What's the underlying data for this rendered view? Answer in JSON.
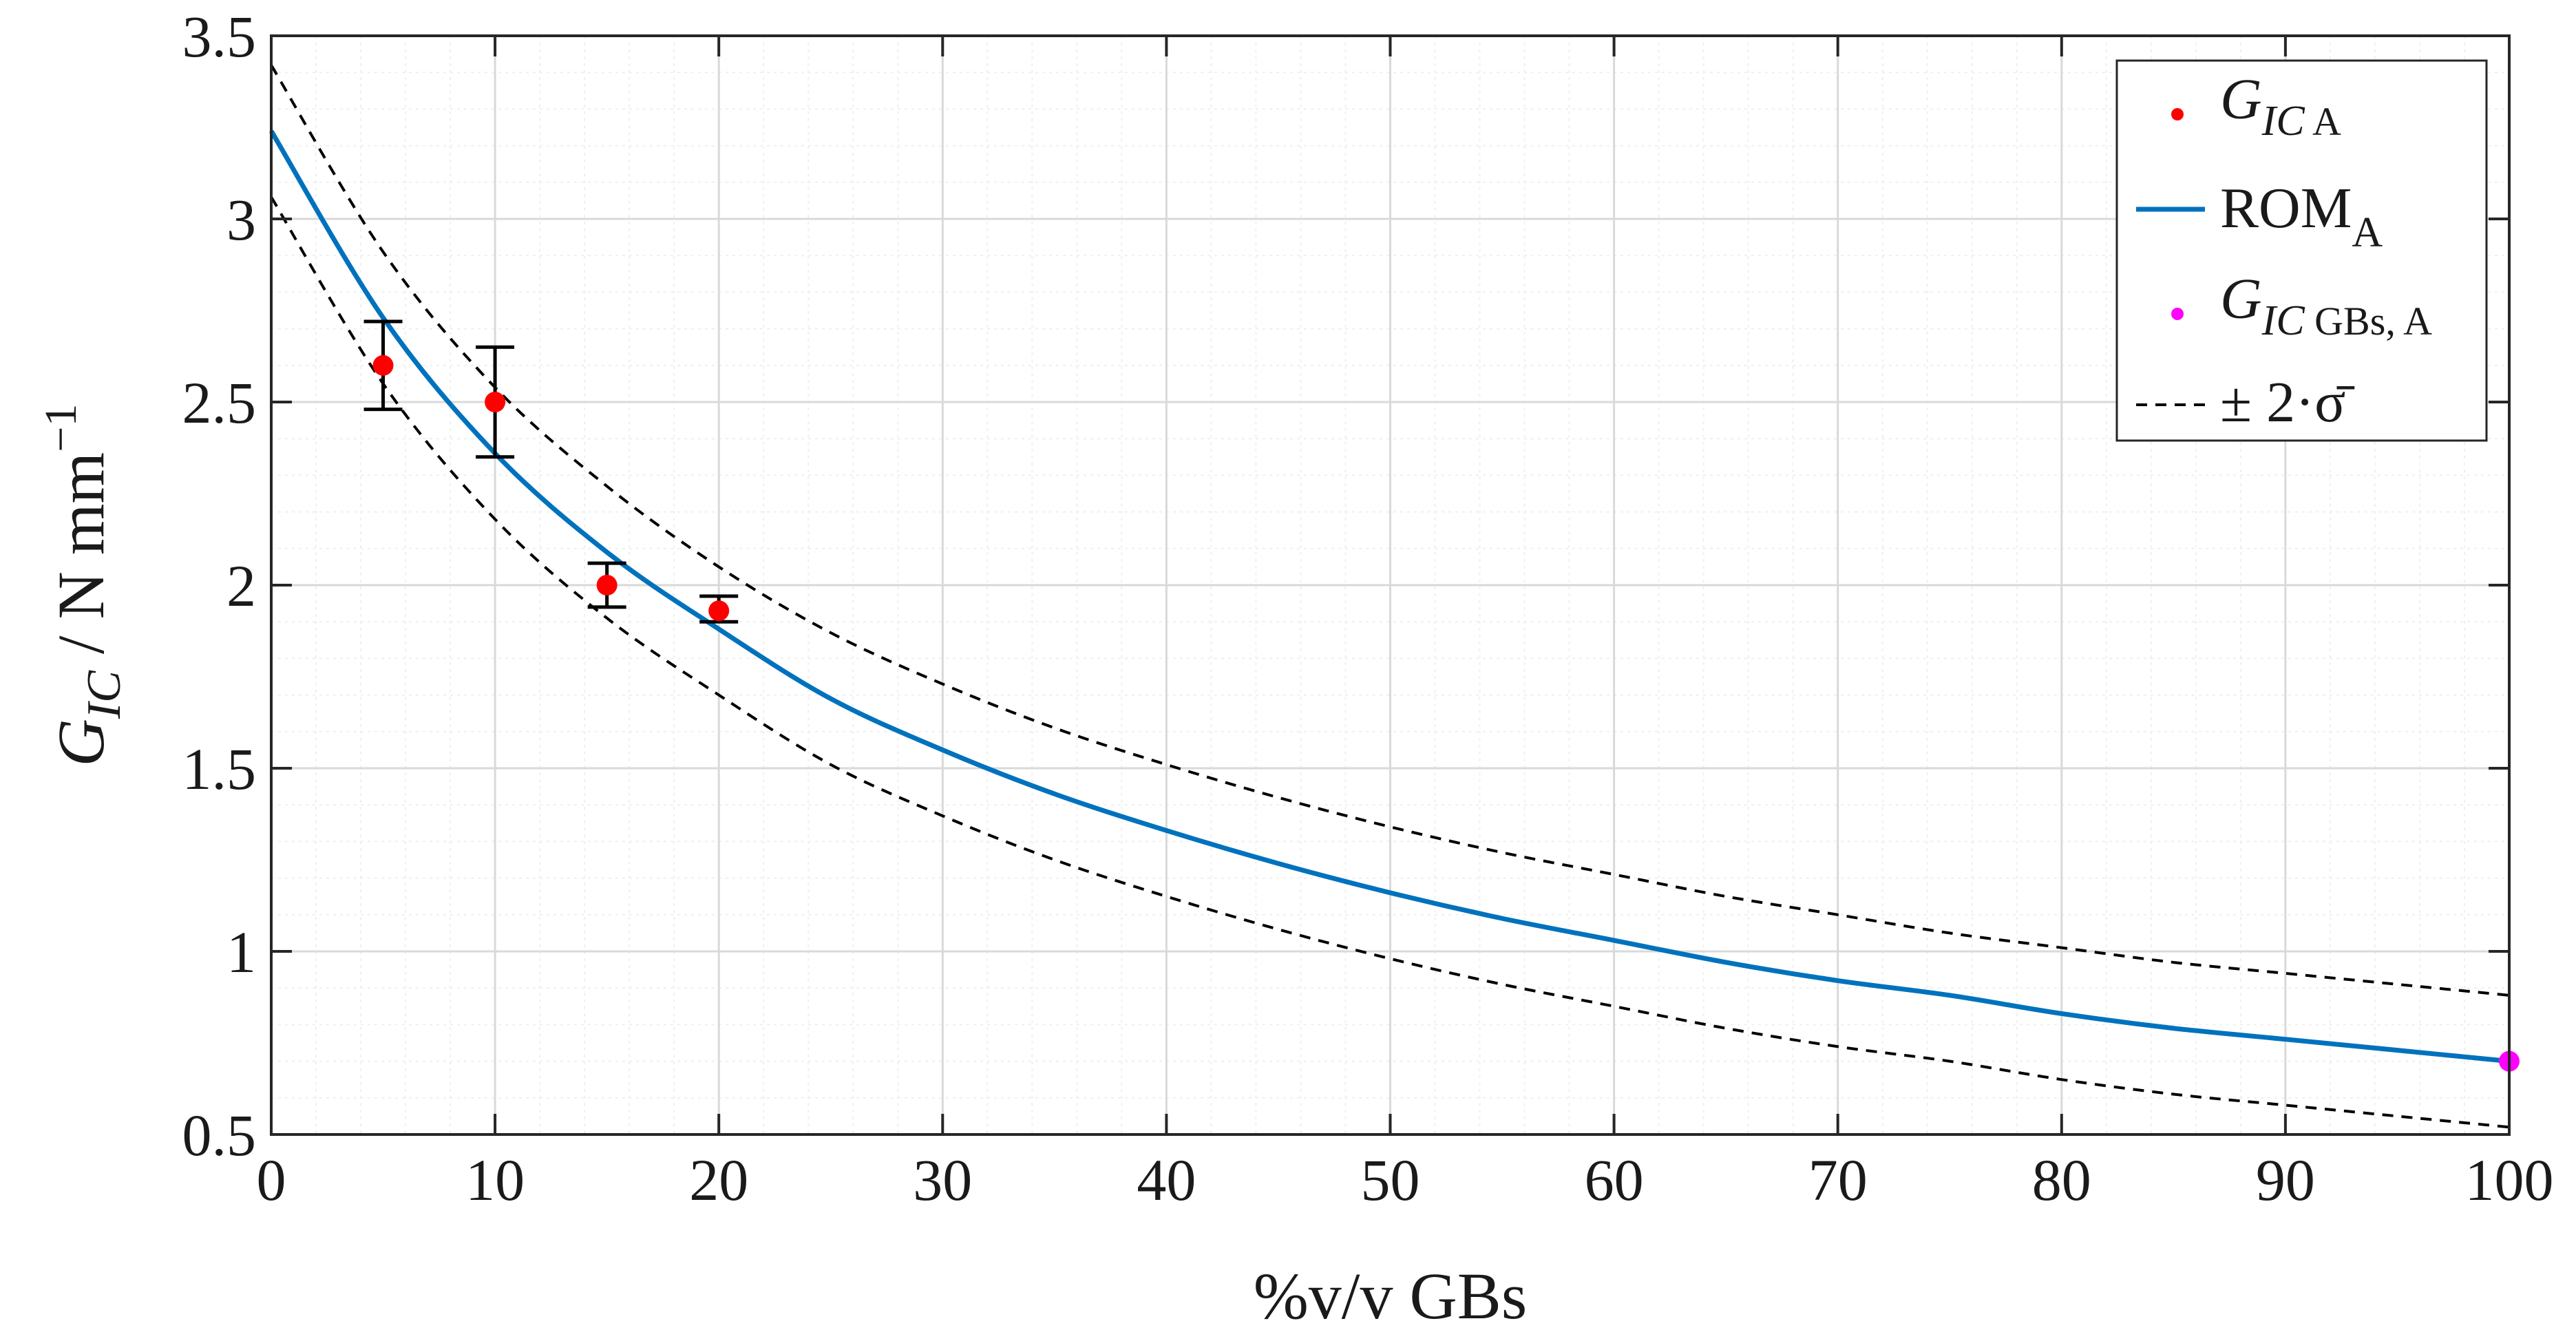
{
  "chart_data": {
    "type": "line",
    "title": "",
    "xlabel": "%v/v GBs",
    "ylabel": {
      "main": "G",
      "sub": "IC",
      "rest": " / N mm",
      "sup": "−1"
    },
    "xlim": [
      0,
      100
    ],
    "ylim": [
      0.5,
      3.5
    ],
    "x_ticks": [
      "0",
      "10",
      "20",
      "30",
      "40",
      "50",
      "60",
      "70",
      "80",
      "90",
      "100"
    ],
    "y_ticks": [
      "0.5",
      "1",
      "1.5",
      "2",
      "2.5",
      "3",
      "3.5"
    ],
    "x_tick_values": [
      0,
      10,
      20,
      30,
      40,
      50,
      60,
      70,
      80,
      90,
      100
    ],
    "y_tick_values": [
      0.5,
      1,
      1.5,
      2,
      2.5,
      3,
      3.5
    ],
    "grid": "major and minor",
    "legend_location": "top-right",
    "colors": {
      "measured": "#ff0000",
      "rom": "#0072bd",
      "gbs": "#ff00ff",
      "band": "#000000",
      "grid_major": "#d9d9d9",
      "grid_minor": "#efefef",
      "axis": "#262626"
    },
    "series": [
      {
        "name": "G_IC A",
        "kind": "scatter-errorbar",
        "x": [
          5,
          10,
          15,
          20
        ],
        "y": [
          2.6,
          2.5,
          2.0,
          1.93
        ],
        "err_low": [
          2.48,
          2.35,
          1.94,
          1.9
        ],
        "err_high": [
          2.72,
          2.65,
          2.06,
          1.97
        ]
      },
      {
        "name": "ROM_A",
        "kind": "line",
        "x": [
          0,
          5,
          10,
          15,
          20,
          25,
          30,
          35,
          40,
          45,
          50,
          55,
          60,
          65,
          70,
          75,
          80,
          85,
          90,
          95,
          100
        ],
        "y": [
          3.24,
          2.73,
          2.36,
          2.09,
          1.88,
          1.69,
          1.55,
          1.43,
          1.33,
          1.24,
          1.16,
          1.09,
          1.03,
          0.97,
          0.92,
          0.88,
          0.83,
          0.79,
          0.76,
          0.73,
          0.7
        ]
      },
      {
        "name": "± 2·σ̄ (upper)",
        "kind": "dashed",
        "x": [
          0,
          5,
          10,
          15,
          20,
          25,
          30,
          35,
          40,
          45,
          50,
          55,
          60,
          65,
          70,
          75,
          80,
          85,
          90,
          95,
          100
        ],
        "y": [
          3.42,
          2.91,
          2.54,
          2.27,
          2.05,
          1.87,
          1.73,
          1.61,
          1.51,
          1.42,
          1.34,
          1.27,
          1.21,
          1.15,
          1.1,
          1.05,
          1.01,
          0.97,
          0.94,
          0.91,
          0.88
        ]
      },
      {
        "name": "± 2·σ̄ (lower)",
        "kind": "dashed",
        "x": [
          0,
          5,
          10,
          15,
          20,
          25,
          30,
          35,
          40,
          45,
          50,
          55,
          60,
          65,
          70,
          75,
          80,
          85,
          90,
          95,
          100
        ],
        "y": [
          3.06,
          2.55,
          2.18,
          1.91,
          1.7,
          1.51,
          1.37,
          1.25,
          1.15,
          1.06,
          0.98,
          0.91,
          0.85,
          0.79,
          0.74,
          0.7,
          0.65,
          0.61,
          0.58,
          0.55,
          0.52
        ]
      },
      {
        "name": "G_IC GBs, A",
        "kind": "point",
        "x": [
          100
        ],
        "y": [
          0.7
        ]
      }
    ],
    "legend": [
      {
        "marker": "dot-red",
        "main": "G",
        "sub_italic": "IC",
        "sub_plain": " A"
      },
      {
        "marker": "line-blue",
        "main": "ROM",
        "sub_plain": "A"
      },
      {
        "marker": "dot-magenta",
        "main": "G",
        "sub_italic": "IC",
        "sub_plain": " GBs, A"
      },
      {
        "marker": "dashed-black",
        "text": "± 2·σ̄"
      }
    ]
  }
}
